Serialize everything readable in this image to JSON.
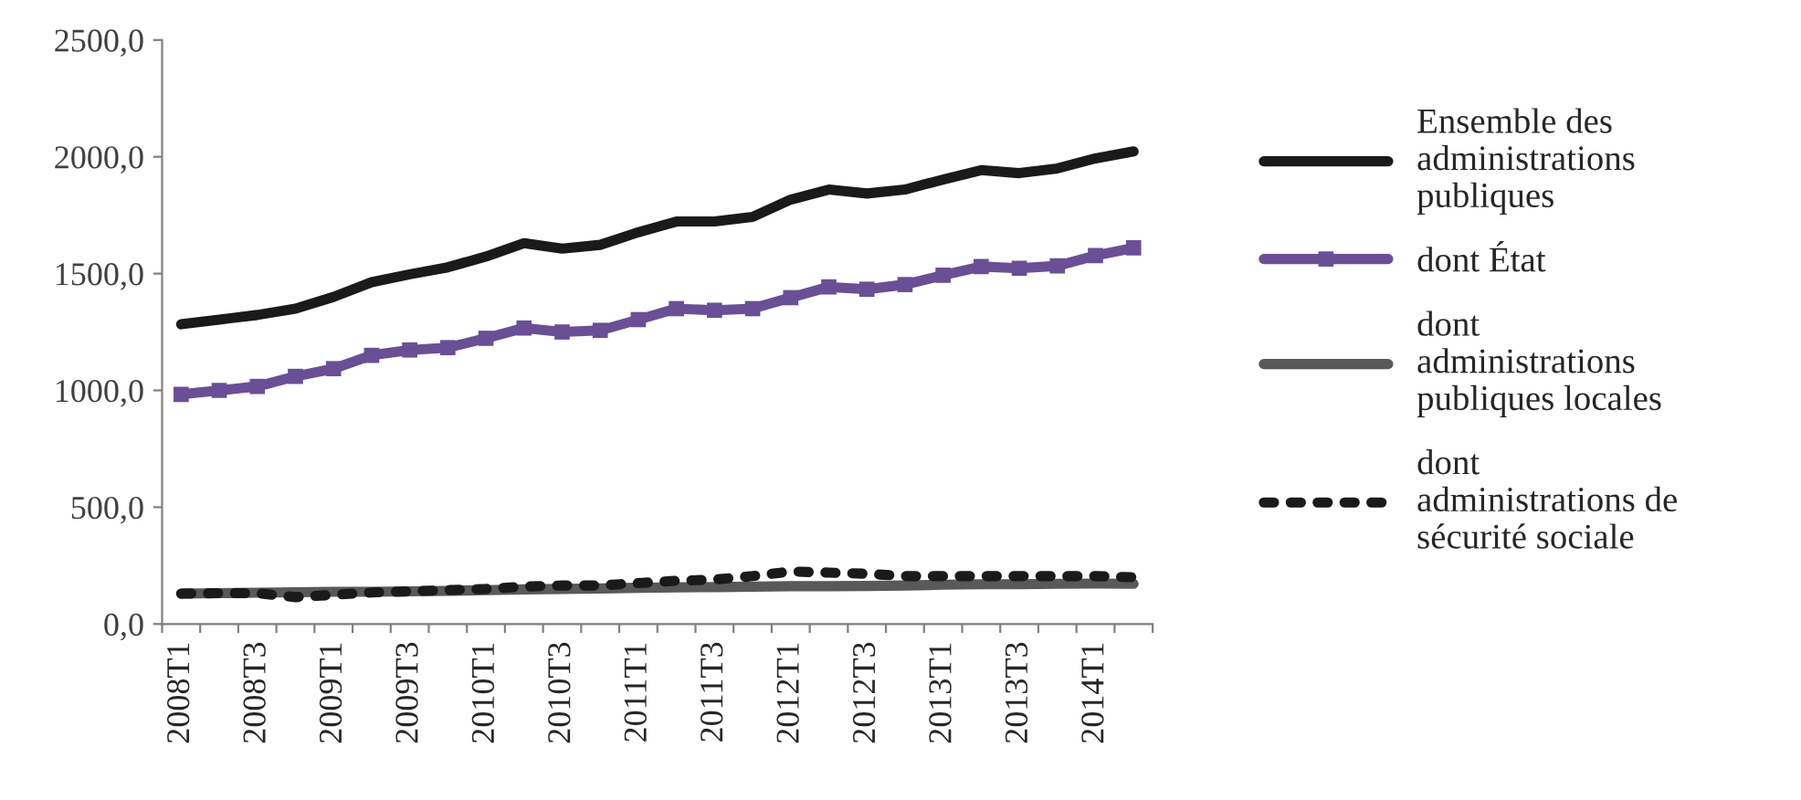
{
  "chart_data": {
    "type": "line",
    "categories": [
      "2008T1",
      null,
      "2008T3",
      null,
      "2009T1",
      null,
      "2009T3",
      null,
      "2010T1",
      null,
      "2010T3",
      null,
      "2011T1",
      null,
      "2011T3",
      null,
      "2012T1",
      null,
      "2012T3",
      null,
      "2013T1",
      null,
      "2013T3",
      null,
      "2014T1",
      null
    ],
    "series": [
      {
        "name": "Ensemble des\nadministrations\npubliques",
        "color": "#1a1a1a",
        "marker": "none",
        "line_style": "solid",
        "values": [
          1283,
          1303,
          1323,
          1350,
          1400,
          1463,
          1497,
          1527,
          1573,
          1630,
          1607,
          1623,
          1677,
          1723,
          1723,
          1743,
          1817,
          1860,
          1843,
          1860,
          1903,
          1943,
          1930,
          1950,
          1993,
          2023
        ]
      },
      {
        "name": "dont État",
        "color": "#6a4f96",
        "marker": "square",
        "line_style": "solid",
        "values": [
          983,
          1000,
          1017,
          1060,
          1093,
          1150,
          1173,
          1183,
          1223,
          1267,
          1250,
          1257,
          1303,
          1350,
          1343,
          1350,
          1397,
          1443,
          1433,
          1453,
          1493,
          1530,
          1523,
          1533,
          1577,
          1610
        ]
      },
      {
        "name": "dont\nadministrations\npubliques locales",
        "color": "#595959",
        "marker": "none",
        "line_style": "solid",
        "values": [
          130,
          132,
          134,
          136,
          138,
          138,
          140,
          142,
          145,
          148,
          150,
          152,
          155,
          157,
          158,
          160,
          162,
          162,
          163,
          165,
          168,
          170,
          170,
          172,
          173,
          172
        ]
      },
      {
        "name": "dont\nadministrations de\nsécurité sociale",
        "color": "#1a1a1a",
        "marker": "none",
        "line_style": "dotted",
        "values": [
          130,
          132,
          132,
          115,
          125,
          135,
          140,
          145,
          150,
          160,
          165,
          165,
          175,
          185,
          190,
          205,
          225,
          220,
          215,
          205,
          205,
          205,
          205,
          205,
          205,
          200
        ]
      }
    ],
    "ylim": [
      0,
      2500
    ],
    "yticks": [
      {
        "value": 0,
        "label": "0,0"
      },
      {
        "value": 500,
        "label": "500,0"
      },
      {
        "value": 1000,
        "label": "1000,0"
      },
      {
        "value": 1500,
        "label": "1500,0"
      },
      {
        "value": 2000,
        "label": "2000,0"
      },
      {
        "value": 2500,
        "label": "2500,0"
      }
    ],
    "grid": false,
    "legend": "right"
  }
}
